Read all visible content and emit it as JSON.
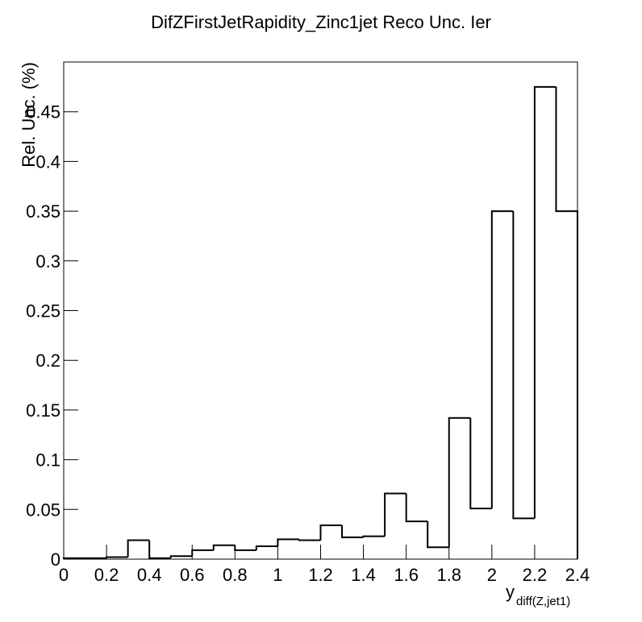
{
  "chart_data": {
    "type": "histogram",
    "title": "DifZFirstJetRapidity_Zinc1jet Reco Unc. Ier",
    "ylabel": "Rel. Unc. (%)",
    "xlabel": "y",
    "xlabel_subscript": "diff(Z,jet1)",
    "bins": [
      0,
      0.1,
      0.2,
      0.3,
      0.4,
      0.5,
      0.6,
      0.7,
      0.8,
      0.9,
      1.0,
      1.1,
      1.2,
      1.3,
      1.4,
      1.5,
      1.6,
      1.7,
      1.8,
      1.9,
      2.0,
      2.1,
      2.2,
      2.3,
      2.4
    ],
    "values": [
      0.001,
      0.001,
      0.002,
      0.019,
      0.001,
      0.003,
      0.009,
      0.014,
      0.009,
      0.013,
      0.02,
      0.019,
      0.034,
      0.022,
      0.023,
      0.066,
      0.038,
      0.012,
      0.142,
      0.051,
      0.35,
      0.041,
      0.475,
      0.35
    ],
    "color": "#000000",
    "xlim": [
      0,
      2.4
    ],
    "xticks": [
      0,
      0.2,
      0.4,
      0.6,
      0.8,
      1,
      1.2,
      1.4,
      1.6,
      1.8,
      2,
      2.2,
      2.4
    ],
    "ylim": [
      0,
      0.5
    ],
    "yticks": [
      0,
      0.05,
      0.1,
      0.15,
      0.2,
      0.25,
      0.3,
      0.35,
      0.4,
      0.45
    ]
  }
}
